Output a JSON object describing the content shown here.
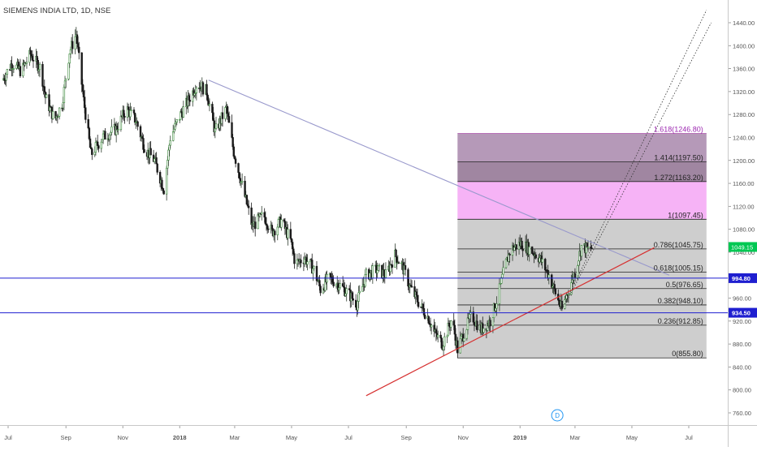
{
  "header": {
    "title": "SIEMENS INDIA LTD, 1D, NSE"
  },
  "colors": {
    "up": "#2f3d2f",
    "down": "#1a1a1a",
    "up_wick": "#c23c3c",
    "green_candle": "#3b8a3b",
    "trendline": "#9999cc",
    "support": "#d63030",
    "hline": "#1f1fd0",
    "fib_line": "#222222",
    "fib_box": "#bdbdbd",
    "fib_ext": "#f5a6f5",
    "fib_ext_dark": "#a37fa6"
  },
  "chart_data": {
    "type": "candlestick",
    "title": "SIEMENS INDIA LTD, 1D, NSE",
    "ylim": [
      740,
      1460
    ],
    "y_ticks": [
      "760.00",
      "800.00",
      "840.00",
      "880.00",
      "920.00",
      "960.00",
      "1040.00",
      "1080.00",
      "1120.00",
      "1160.00",
      "1200.00",
      "1240.00",
      "1280.00",
      "1320.00",
      "1360.00",
      "1400.00",
      "1440.00"
    ],
    "x_ticks": [
      {
        "label": "Jul",
        "date": "2017-07-01"
      },
      {
        "label": "Sep",
        "date": "2017-09-01"
      },
      {
        "label": "Nov",
        "date": "2017-11-01"
      },
      {
        "label": "2018",
        "date": "2018-01-01"
      },
      {
        "label": "Mar",
        "date": "2018-03-01"
      },
      {
        "label": "May",
        "date": "2018-05-01"
      },
      {
        "label": "Jul",
        "date": "2018-07-01"
      },
      {
        "label": "Sep",
        "date": "2018-09-01"
      },
      {
        "label": "Nov",
        "date": "2018-11-01"
      },
      {
        "label": "2019",
        "date": "2019-01-01"
      },
      {
        "label": "Mar",
        "date": "2019-03-01"
      },
      {
        "label": "May",
        "date": "2019-05-01"
      },
      {
        "label": "Jul",
        "date": "2019-07-01"
      }
    ],
    "price_path": [
      [
        "2017-06-25",
        1340
      ],
      [
        "2017-07-05",
        1370
      ],
      [
        "2017-07-15",
        1355
      ],
      [
        "2017-07-25",
        1385
      ],
      [
        "2017-08-05",
        1360
      ],
      [
        "2017-08-10",
        1310
      ],
      [
        "2017-08-20",
        1270
      ],
      [
        "2017-08-28",
        1300
      ],
      [
        "2017-09-05",
        1390
      ],
      [
        "2017-09-12",
        1420
      ],
      [
        "2017-09-20",
        1305
      ],
      [
        "2017-09-28",
        1210
      ],
      [
        "2017-10-10",
        1240
      ],
      [
        "2017-10-25",
        1255
      ],
      [
        "2017-11-05",
        1290
      ],
      [
        "2017-11-15",
        1270
      ],
      [
        "2017-11-25",
        1220
      ],
      [
        "2017-12-05",
        1200
      ],
      [
        "2017-12-15",
        1150
      ],
      [
        "2017-12-22",
        1240
      ],
      [
        "2018-01-02",
        1280
      ],
      [
        "2018-01-12",
        1310
      ],
      [
        "2018-01-20",
        1335
      ],
      [
        "2018-01-30",
        1320
      ],
      [
        "2018-02-08",
        1250
      ],
      [
        "2018-02-20",
        1290
      ],
      [
        "2018-02-28",
        1215
      ],
      [
        "2018-03-10",
        1150
      ],
      [
        "2018-03-20",
        1085
      ],
      [
        "2018-04-01",
        1105
      ],
      [
        "2018-04-10",
        1075
      ],
      [
        "2018-04-20",
        1095
      ],
      [
        "2018-04-30",
        1060
      ],
      [
        "2018-05-05",
        1020
      ],
      [
        "2018-05-15",
        1030
      ],
      [
        "2018-05-25",
        1010
      ],
      [
        "2018-06-01",
        975
      ],
      [
        "2018-06-10",
        995
      ],
      [
        "2018-06-20",
        985
      ],
      [
        "2018-06-30",
        970
      ],
      [
        "2018-07-10",
        950
      ],
      [
        "2018-07-20",
        1000
      ],
      [
        "2018-08-01",
        1010
      ],
      [
        "2018-08-10",
        1000
      ],
      [
        "2018-08-20",
        1035
      ],
      [
        "2018-08-28",
        1015
      ],
      [
        "2018-09-05",
        980
      ],
      [
        "2018-09-15",
        950
      ],
      [
        "2018-09-25",
        925
      ],
      [
        "2018-10-01",
        900
      ],
      [
        "2018-10-10",
        880
      ],
      [
        "2018-10-20",
        925
      ],
      [
        "2018-10-26",
        870
      ],
      [
        "2018-11-02",
        900
      ],
      [
        "2018-11-10",
        930
      ],
      [
        "2018-11-20",
        905
      ],
      [
        "2018-11-30",
        920
      ],
      [
        "2018-12-08",
        960
      ],
      [
        "2018-12-15",
        1010
      ],
      [
        "2018-12-22",
        1045
      ],
      [
        "2019-01-02",
        1055
      ],
      [
        "2019-01-12",
        1045
      ],
      [
        "2019-01-22",
        1030
      ],
      [
        "2019-02-01",
        1000
      ],
      [
        "2019-02-10",
        960
      ],
      [
        "2019-02-15",
        940
      ],
      [
        "2019-02-22",
        975
      ],
      [
        "2019-03-01",
        1005
      ],
      [
        "2019-03-08",
        1050
      ],
      [
        "2019-03-15",
        1045
      ],
      [
        "2019-03-20",
        1049
      ]
    ],
    "fib_levels": [
      {
        "label": "0(855.80)",
        "value": 855.8
      },
      {
        "label": "0.236(912.85)",
        "value": 912.85
      },
      {
        "label": "0.382(948.10)",
        "value": 948.1
      },
      {
        "label": "0.5(976.65)",
        "value": 976.65
      },
      {
        "label": "0.618(1005.15)",
        "value": 1005.15
      },
      {
        "label": "0.786(1045.75)",
        "value": 1045.75
      },
      {
        "label": "1(1097.45)",
        "value": 1097.45
      },
      {
        "label": "1.272(1163.20)",
        "value": 1163.2
      },
      {
        "label": "1.414(1197.50)",
        "value": 1197.5
      },
      {
        "label": "1.618(1246.80)",
        "value": 1246.8
      }
    ],
    "fib_range": {
      "start": "2018-10-26",
      "end": "2019-07-20"
    },
    "horizontal_lines": [
      {
        "value": 994.8,
        "label": "994.80"
      },
      {
        "value": 934.5,
        "label": "934.50"
      }
    ],
    "last_price": {
      "value": 1049.15,
      "label": "1049.15"
    },
    "trendlines": [
      {
        "name": "resistance",
        "from": [
          "2018-02-01",
          1340
        ],
        "to": [
          "2019-06-10",
          1000
        ]
      },
      {
        "name": "support",
        "from": [
          "2018-07-20",
          790
        ],
        "to": [
          "2019-05-25",
          1048
        ]
      }
    ],
    "channel": [
      {
        "from": [
          "2019-02-15",
          940
        ],
        "to": [
          "2019-07-20",
          1462
        ]
      },
      {
        "from": [
          "2019-02-22",
          960
        ],
        "to": [
          "2019-07-25",
          1440
        ]
      }
    ],
    "marker": {
      "label": "D",
      "date": "2019-02-10"
    }
  }
}
